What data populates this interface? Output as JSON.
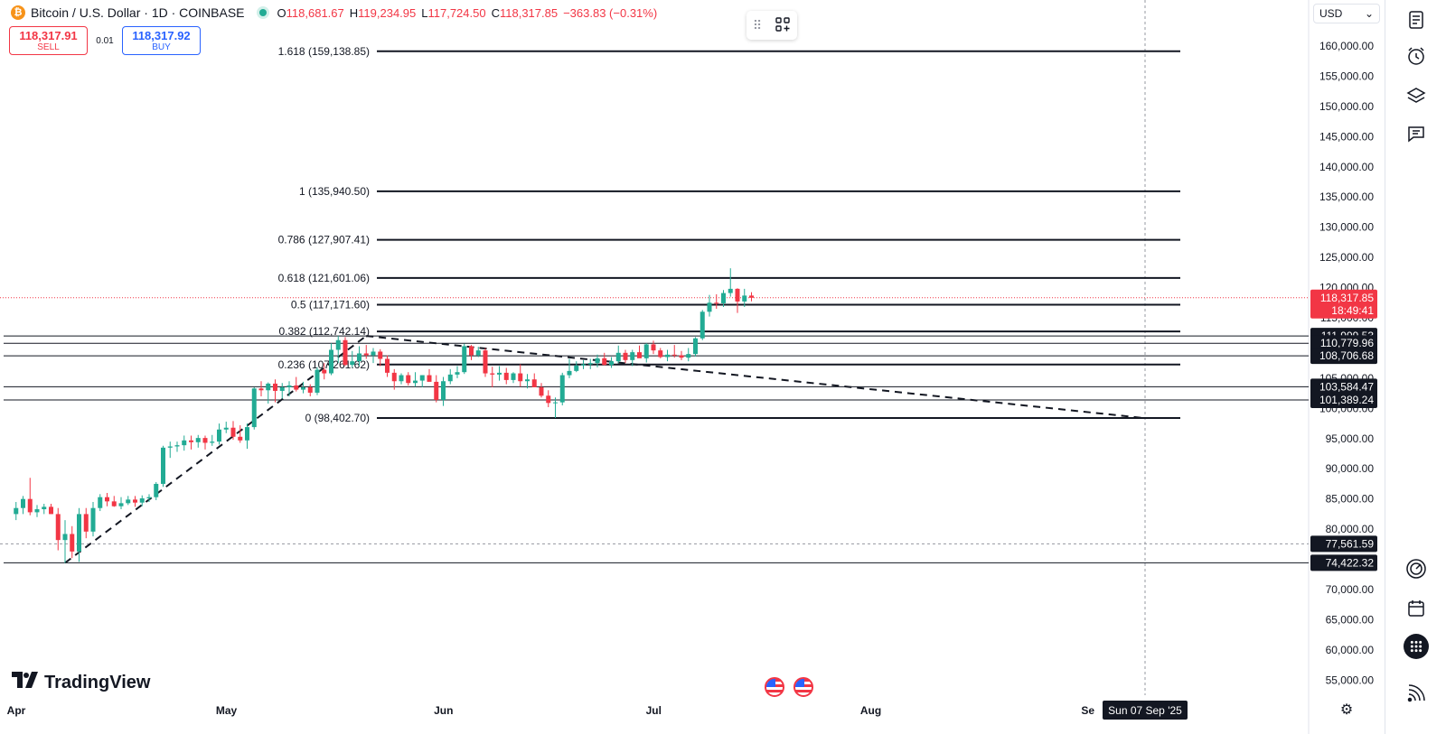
{
  "header": {
    "title": "Bitcoin / U.S. Dollar · 1D · COINBASE",
    "coin_glyph": "₿",
    "ohlc": [
      {
        "k": "O",
        "v": "118,681.67"
      },
      {
        "k": "H",
        "v": "119,234.95"
      },
      {
        "k": "L",
        "v": "117,724.50"
      },
      {
        "k": "C",
        "v": "118,317.85"
      }
    ],
    "change": "−363.83 (−0.31%)"
  },
  "trade": {
    "sell_price": "118,317.91",
    "sell_label": "SELL",
    "spread": "0.01",
    "buy_price": "118,317.92",
    "buy_label": "BUY"
  },
  "currency": {
    "value": "USD"
  },
  "logo": {
    "text": "TradingView"
  },
  "crosshair": {
    "date_label": "Sun 07 Sep '25"
  },
  "colors": {
    "up": "#22ab94",
    "down": "#f23645",
    "line": "#131722",
    "accent": "#2962ff"
  },
  "chart_data": {
    "type": "candlestick",
    "title": "Bitcoin / U.S. Dollar · 1D · COINBASE",
    "y_range": [
      52000,
      164000
    ],
    "y_ticks": [
      "160,000.00",
      "155,000.00",
      "150,000.00",
      "145,000.00",
      "140,000.00",
      "135,000.00",
      "130,000.00",
      "125,000.00",
      "120,000.00",
      "115,000.00",
      "105,000.00",
      "100,000.00",
      "95,000.00",
      "90,000.00",
      "85,000.00",
      "80,000.00",
      "70,000.00",
      "65,000.00",
      "60,000.00",
      "55,000.00"
    ],
    "y_tick_values": [
      160000,
      155000,
      150000,
      145000,
      140000,
      135000,
      130000,
      125000,
      120000,
      115000,
      105000,
      100000,
      95000,
      90000,
      85000,
      80000,
      70000,
      65000,
      60000,
      55000
    ],
    "x_ticks": [
      {
        "label": "Apr",
        "day": 0
      },
      {
        "label": "May",
        "day": 30
      },
      {
        "label": "Jun",
        "day": 61
      },
      {
        "label": "Jul",
        "day": 91
      },
      {
        "label": "Aug",
        "day": 122
      },
      {
        "label": "Se",
        "day": 153
      }
    ],
    "fibonacci": [
      {
        "label": "1.618 (159,138.85)",
        "value": 159138.85
      },
      {
        "label": "1 (135,940.50)",
        "value": 135940.5
      },
      {
        "label": "0.786 (127,907.41)",
        "value": 127907.41
      },
      {
        "label": "0.618 (121,601.06)",
        "value": 121601.06
      },
      {
        "label": "0.5 (117,171.60)",
        "value": 117171.6
      },
      {
        "label": "0.382 (112,742.14)",
        "value": 112742.14
      },
      {
        "label": "0.236 (107,261.62)",
        "value": 107261.62
      },
      {
        "label": "0 (98,402.70)",
        "value": 98402.7
      }
    ],
    "horizontal_lines": [
      {
        "label": "111,999.53",
        "value": 111999.53
      },
      {
        "label": "110,779.96",
        "value": 110779.96
      },
      {
        "label": "108,706.68",
        "value": 108706.68
      },
      {
        "label": "103,584.47",
        "value": 103584.47
      },
      {
        "label": "101,389.24",
        "value": 101389.24
      },
      {
        "label": "74,422.32",
        "value": 74422.32
      }
    ],
    "crosshair_price": {
      "label": "77,561.59",
      "value": 77561.59
    },
    "last_price": {
      "label": "118,317.85",
      "countdown": "18:49:41",
      "value": 118317.85
    },
    "trendlines": [
      {
        "from": {
          "day": 8,
          "value": 74422
        },
        "to": {
          "day": 51,
          "value": 111999
        }
      },
      {
        "from": {
          "day": 51,
          "value": 111999
        },
        "to": {
          "day": 162,
          "value": 98403
        }
      }
    ],
    "candles": [
      [
        1,
        82500,
        84500,
        81500,
        83500
      ],
      [
        2,
        83500,
        85500,
        82500,
        85000
      ],
      [
        3,
        85000,
        88500,
        82300,
        82800
      ],
      [
        4,
        82800,
        84000,
        82000,
        83300
      ],
      [
        5,
        83300,
        84200,
        82500,
        83700
      ],
      [
        6,
        83700,
        84200,
        82500,
        82500
      ],
      [
        7,
        82500,
        83500,
        76500,
        78200
      ],
      [
        8,
        78200,
        81500,
        74400,
        79200
      ],
      [
        9,
        79200,
        80500,
        75200,
        76300
      ],
      [
        10,
        76300,
        83500,
        74600,
        82500
      ],
      [
        11,
        82500,
        83500,
        78500,
        79600
      ],
      [
        12,
        79600,
        84500,
        78800,
        83500
      ],
      [
        13,
        83500,
        85800,
        83000,
        85300
      ],
      [
        14,
        85300,
        86000,
        83800,
        84600
      ],
      [
        15,
        84600,
        85500,
        83700,
        83800
      ],
      [
        16,
        83800,
        85300,
        83300,
        84300
      ],
      [
        17,
        84300,
        85500,
        84000,
        84900
      ],
      [
        18,
        84900,
        85500,
        83700,
        84400
      ],
      [
        19,
        84400,
        85600,
        83800,
        85100
      ],
      [
        20,
        85100,
        85800,
        84500,
        85300
      ],
      [
        21,
        85300,
        87800,
        84800,
        87500
      ],
      [
        22,
        87500,
        93800,
        87000,
        93500
      ],
      [
        23,
        93500,
        94500,
        91800,
        93700
      ],
      [
        24,
        93700,
        94500,
        92800,
        93900
      ],
      [
        25,
        93900,
        95500,
        93000,
        94700
      ],
      [
        26,
        94700,
        95500,
        93200,
        94400
      ],
      [
        27,
        94400,
        95600,
        93500,
        95100
      ],
      [
        28,
        95100,
        95500,
        93200,
        94300
      ],
      [
        29,
        94300,
        95600,
        93800,
        94500
      ],
      [
        30,
        94500,
        97500,
        94000,
        96500
      ],
      [
        31,
        96500,
        97800,
        95900,
        96800
      ],
      [
        32,
        96800,
        97900,
        94800,
        95300
      ],
      [
        33,
        95300,
        97200,
        94300,
        94700
      ],
      [
        34,
        94700,
        97500,
        93300,
        96900
      ],
      [
        35,
        96900,
        103500,
        96500,
        103300
      ],
      [
        36,
        103300,
        104500,
        102000,
        103000
      ],
      [
        37,
        103000,
        104300,
        100800,
        104100
      ],
      [
        38,
        104100,
        104800,
        101000,
        102900
      ],
      [
        39,
        102900,
        104200,
        101600,
        103500
      ],
      [
        40,
        103500,
        104500,
        102000,
        103800
      ],
      [
        41,
        103800,
        105200,
        102800,
        103100
      ],
      [
        42,
        103100,
        104400,
        102500,
        103500
      ],
      [
        43,
        103500,
        104000,
        102000,
        102600
      ],
      [
        44,
        102600,
        106800,
        102200,
        106400
      ],
      [
        45,
        106400,
        107500,
        104800,
        105800
      ],
      [
        46,
        105800,
        110800,
        105500,
        109700
      ],
      [
        47,
        109700,
        112000,
        107500,
        111300
      ],
      [
        48,
        111300,
        111800,
        107000,
        107200
      ],
      [
        49,
        107200,
        109500,
        106800,
        107800
      ],
      [
        50,
        107800,
        110300,
        107000,
        109100
      ],
      [
        51,
        109100,
        110500,
        108200,
        108800
      ],
      [
        52,
        108800,
        110000,
        107500,
        109400
      ],
      [
        53,
        109400,
        109800,
        107000,
        108200
      ],
      [
        54,
        108200,
        108800,
        105200,
        105900
      ],
      [
        55,
        105900,
        106500,
        103100,
        104500
      ],
      [
        56,
        104500,
        105800,
        104000,
        105500
      ],
      [
        57,
        105500,
        106000,
        103800,
        104200
      ],
      [
        58,
        104200,
        106000,
        103600,
        104600
      ],
      [
        59,
        104600,
        105500,
        103500,
        105500
      ],
      [
        60,
        105500,
        106500,
        104500,
        104400
      ],
      [
        61,
        104400,
        105500,
        101000,
        101400
      ],
      [
        62,
        101400,
        105200,
        100400,
        104500
      ],
      [
        63,
        104500,
        106500,
        104000,
        105600
      ],
      [
        64,
        105600,
        107000,
        105000,
        106000
      ],
      [
        65,
        106000,
        110700,
        105700,
        110300
      ],
      [
        66,
        110300,
        110500,
        108000,
        108800
      ],
      [
        67,
        108800,
        110200,
        108500,
        109600
      ],
      [
        68,
        109600,
        110000,
        105200,
        105800
      ],
      [
        69,
        105800,
        106900,
        103500,
        105600
      ],
      [
        70,
        105600,
        107000,
        104600,
        105900
      ],
      [
        71,
        105900,
        106700,
        104000,
        104700
      ],
      [
        72,
        104700,
        106000,
        104200,
        105800
      ],
      [
        73,
        105800,
        107300,
        103600,
        104500
      ],
      [
        74,
        104500,
        105700,
        103300,
        104800
      ],
      [
        75,
        104800,
        105800,
        103800,
        103500
      ],
      [
        76,
        103500,
        104200,
        101800,
        102100
      ],
      [
        77,
        102100,
        103000,
        100200,
        100900
      ],
      [
        78,
        100900,
        101800,
        98400,
        101000
      ],
      [
        79,
        101000,
        105900,
        100500,
        105500
      ],
      [
        80,
        105500,
        108200,
        105000,
        106200
      ],
      [
        81,
        106200,
        107800,
        106000,
        107100
      ],
      [
        82,
        107100,
        108000,
        106500,
        107300
      ],
      [
        83,
        107300,
        108200,
        106500,
        107500
      ],
      [
        84,
        107500,
        108900,
        106800,
        108300
      ],
      [
        85,
        108300,
        109200,
        107100,
        107200
      ],
      [
        86,
        107200,
        108500,
        106700,
        107800
      ],
      [
        87,
        107800,
        110400,
        107500,
        109200
      ],
      [
        88,
        109200,
        109700,
        107500,
        108000
      ],
      [
        89,
        108000,
        109700,
        107000,
        109300
      ],
      [
        90,
        109300,
        110400,
        108500,
        108300
      ],
      [
        91,
        108300,
        110800,
        107600,
        110600
      ],
      [
        92,
        110600,
        111200,
        109000,
        109600
      ],
      [
        93,
        109600,
        110000,
        108300,
        108500
      ],
      [
        94,
        108500,
        109700,
        107800,
        108900
      ],
      [
        95,
        108900,
        110500,
        108400,
        108800
      ],
      [
        96,
        108800,
        109500,
        108000,
        108400
      ],
      [
        97,
        108400,
        110000,
        107800,
        109000
      ],
      [
        98,
        109000,
        111800,
        108600,
        111600
      ],
      [
        99,
        111600,
        116300,
        111300,
        116000
      ],
      [
        100,
        116000,
        118800,
        115200,
        117500
      ],
      [
        101,
        117500,
        118900,
        116500,
        117400
      ],
      [
        102,
        117400,
        119600,
        116800,
        119100
      ],
      [
        103,
        119100,
        123200,
        118500,
        119800
      ],
      [
        104,
        119800,
        119900,
        115800,
        117700
      ],
      [
        105,
        117700,
        119800,
        116800,
        118680
      ],
      [
        106,
        118680,
        119235,
        117725,
        118318
      ]
    ]
  }
}
